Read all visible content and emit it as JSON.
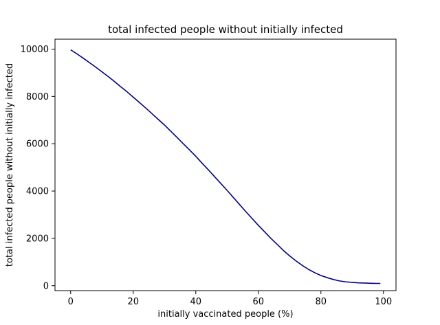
{
  "chart_data": {
    "type": "line",
    "title": "total infected people without initially infected",
    "xlabel": "initially vaccinated people (%)",
    "ylabel": "total infected people without initially infected",
    "xlim": [
      -5,
      104
    ],
    "ylim": [
      -210,
      10420
    ],
    "xticks": [
      0,
      20,
      40,
      60,
      80,
      100
    ],
    "yticks": [
      0,
      2000,
      4000,
      6000,
      8000,
      10000
    ],
    "grid": false,
    "series": [
      {
        "color": "#000080",
        "x": [
          0,
          2,
          4,
          6,
          8,
          10,
          12,
          14,
          16,
          18,
          20,
          22,
          24,
          26,
          28,
          30,
          32,
          34,
          36,
          38,
          40,
          42,
          44,
          46,
          48,
          50,
          52,
          54,
          56,
          58,
          60,
          62,
          64,
          66,
          68,
          70,
          72,
          74,
          76,
          78,
          80,
          82,
          84,
          86,
          88,
          90,
          92,
          94,
          96,
          98,
          99
        ],
        "y": [
          9970,
          9800,
          9620,
          9430,
          9240,
          9040,
          8840,
          8630,
          8410,
          8200,
          7970,
          7740,
          7510,
          7270,
          7030,
          6790,
          6530,
          6270,
          6000,
          5740,
          5470,
          5180,
          4900,
          4610,
          4320,
          4030,
          3730,
          3430,
          3130,
          2840,
          2550,
          2280,
          2000,
          1750,
          1490,
          1260,
          1050,
          860,
          690,
          550,
          430,
          340,
          260,
          200,
          160,
          140,
          120,
          110,
          100,
          95,
          95
        ]
      }
    ]
  }
}
